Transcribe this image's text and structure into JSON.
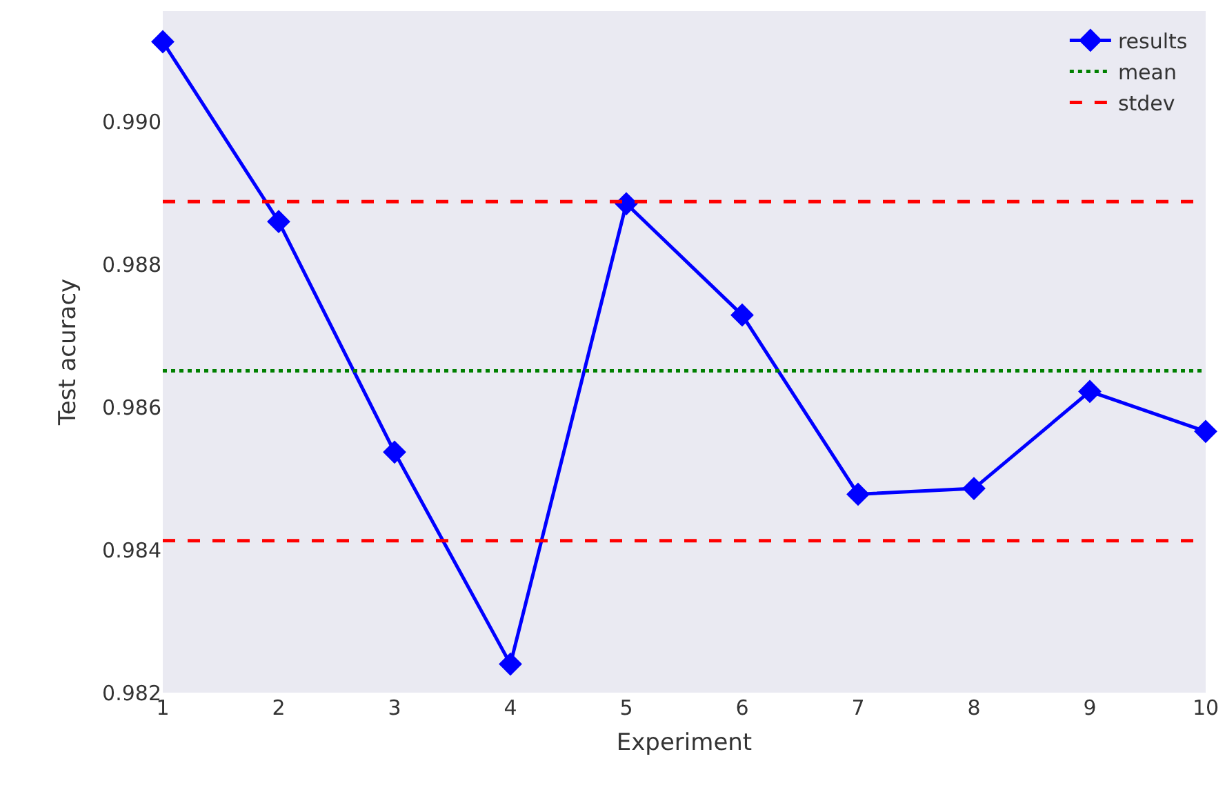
{
  "chart_data": {
    "type": "line",
    "xlabel": "Experiment",
    "ylabel": "Test acuracy",
    "x": [
      1,
      2,
      3,
      4,
      5,
      6,
      7,
      8,
      9,
      10
    ],
    "series": [
      {
        "name": "results",
        "color": "#0000ff",
        "values": [
          0.99112,
          0.9886,
          0.98537,
          0.9824,
          0.98885,
          0.98729,
          0.98478,
          0.98486,
          0.98622,
          0.98566
        ]
      }
    ],
    "xlim": [
      1,
      10
    ],
    "xticks": [
      1,
      2,
      3,
      4,
      5,
      6,
      7,
      8,
      9,
      10
    ],
    "ylim": [
      0.982,
      0.99155
    ],
    "yticks": [
      {
        "value": 0.982,
        "label": "0.982"
      },
      {
        "value": 0.984,
        "label": "0.984"
      },
      {
        "value": 0.986,
        "label": "0.986"
      },
      {
        "value": 0.988,
        "label": "0.988"
      },
      {
        "value": 0.99,
        "label": "0.990"
      }
    ],
    "ref_lines": [
      {
        "axis": "y",
        "value": 0.98651,
        "label": "mean",
        "color": "#008000",
        "line_style": "dotted"
      },
      {
        "axis": "y",
        "value": 0.98888,
        "label": "stdev",
        "color": "#ff0000",
        "line_style": "dashed"
      },
      {
        "axis": "y",
        "value": 0.98413,
        "color": "#ff0000",
        "line_style": "dashed"
      }
    ],
    "marker": "diamond",
    "line_style": "solid",
    "grid": false,
    "legend": "top right"
  }
}
